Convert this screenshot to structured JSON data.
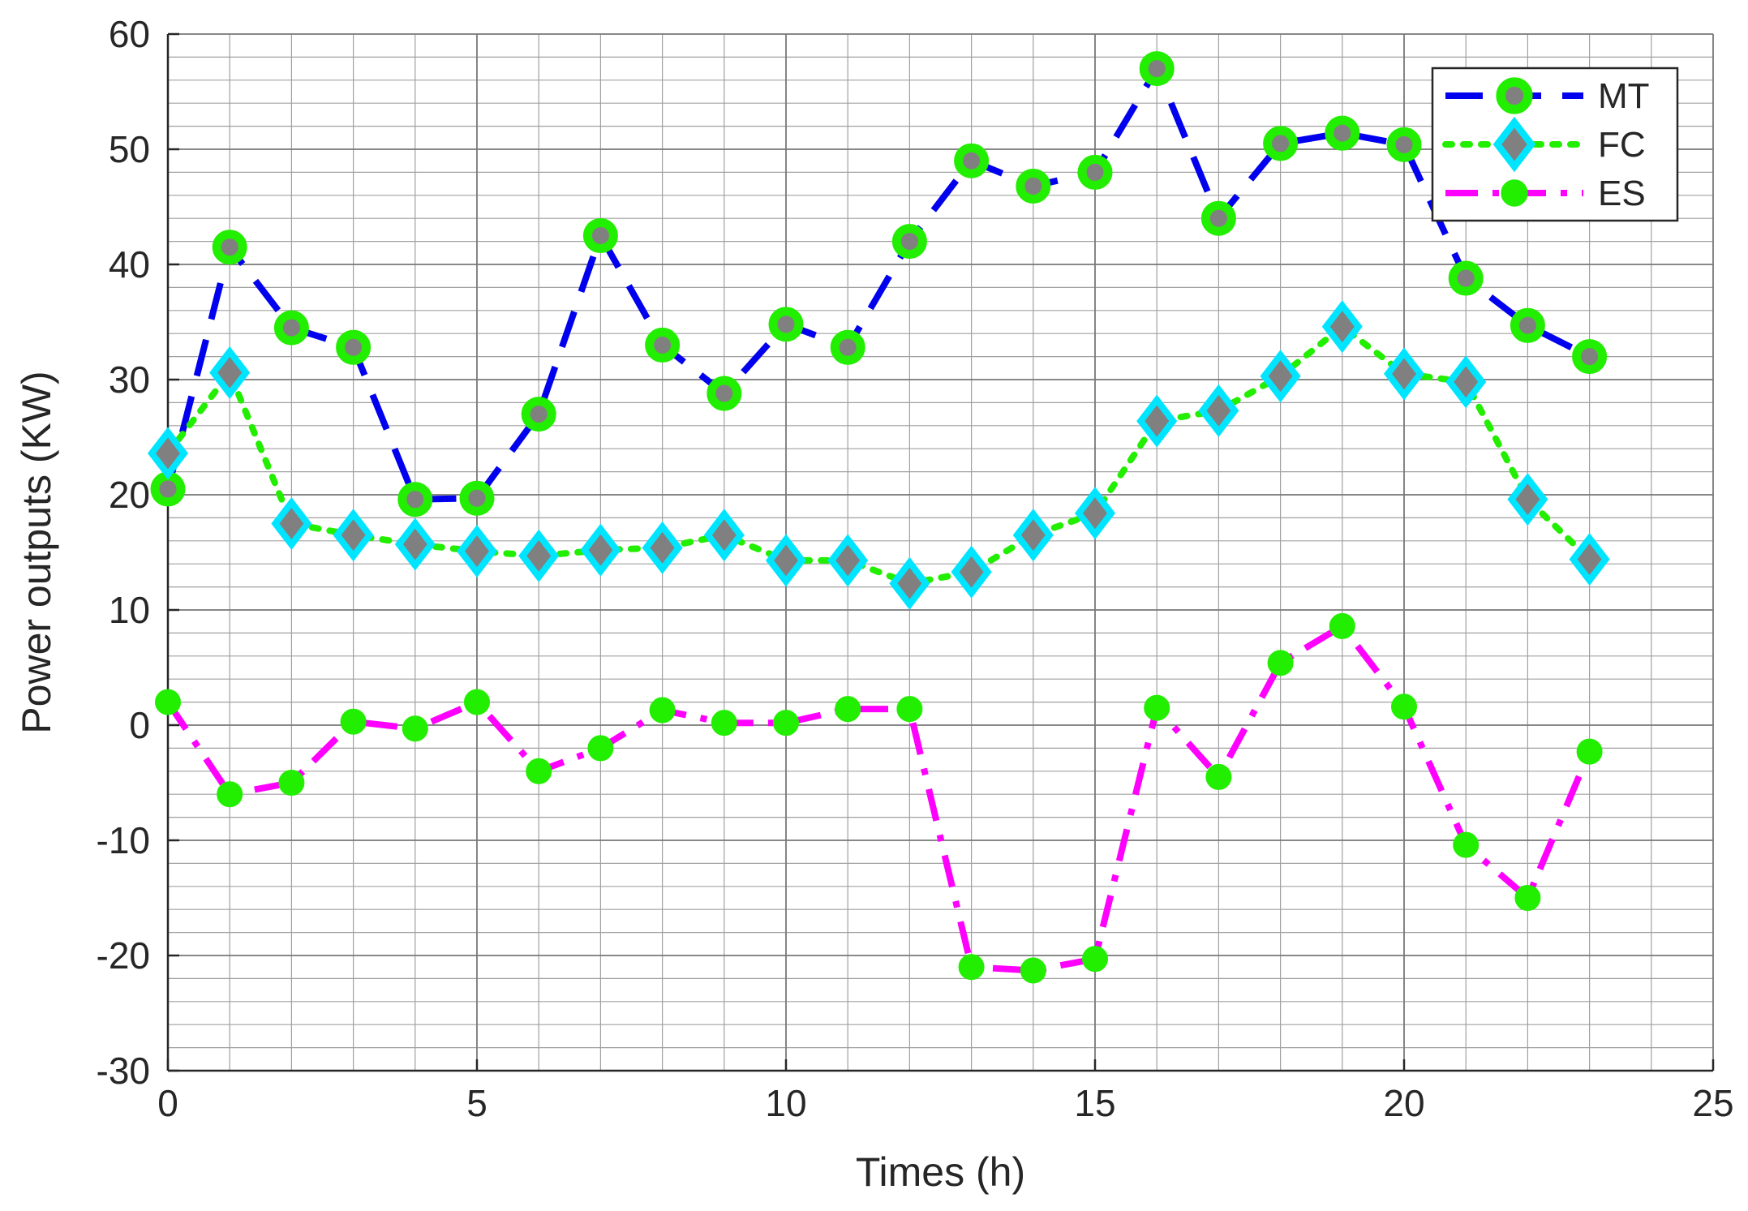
{
  "chart_data": {
    "type": "line",
    "title": "",
    "xlabel": "Times (h)",
    "ylabel": "Power outputs (KW)",
    "xlim": [
      0,
      25
    ],
    "ylim": [
      -30,
      60
    ],
    "xticks": [
      0,
      5,
      10,
      15,
      20,
      25
    ],
    "yticks": [
      -30,
      -20,
      -10,
      0,
      10,
      20,
      30,
      40,
      50,
      60
    ],
    "grid": true,
    "minor_grid": true,
    "legend_position": "top-right",
    "x": [
      0,
      1,
      2,
      3,
      4,
      5,
      6,
      7,
      8,
      9,
      10,
      11,
      12,
      13,
      14,
      15,
      16,
      17,
      18,
      19,
      20,
      21,
      22,
      23
    ],
    "series": [
      {
        "name": "MT",
        "line_color": "#0000ee",
        "line_style": "dashed",
        "marker": "circle",
        "marker_fill": "#808080",
        "marker_edge": "#22ee00",
        "values": [
          20.5,
          41.5,
          34.5,
          32.8,
          19.6,
          19.7,
          27.0,
          42.5,
          33.0,
          28.8,
          34.8,
          32.8,
          42.0,
          49.0,
          46.8,
          48.0,
          57.0,
          44.0,
          50.5,
          51.4,
          50.4,
          38.8,
          34.7,
          32.0
        ]
      },
      {
        "name": "FC",
        "line_color": "#22ee00",
        "line_style": "dotted",
        "marker": "diamond",
        "marker_fill": "#808080",
        "marker_edge": "#00e5ff",
        "values": [
          23.6,
          30.6,
          17.5,
          16.5,
          15.7,
          15.1,
          14.7,
          15.2,
          15.4,
          16.5,
          14.3,
          14.3,
          12.3,
          13.3,
          16.5,
          18.4,
          26.4,
          27.3,
          30.3,
          34.6,
          30.5,
          29.8,
          19.6,
          14.4
        ]
      },
      {
        "name": "ES",
        "line_color": "#ff00ff",
        "line_style": "dashdot",
        "marker": "circle",
        "marker_fill": "#22ee00",
        "marker_edge": "#22ee00",
        "values": [
          2.0,
          -6.0,
          -5.0,
          0.3,
          -0.3,
          2.0,
          -4.0,
          -2.0,
          1.3,
          0.2,
          0.2,
          1.4,
          1.4,
          -21.0,
          -21.3,
          -20.3,
          1.5,
          -4.5,
          5.4,
          8.6,
          1.6,
          -10.4,
          -15.0,
          -2.3
        ]
      }
    ]
  }
}
